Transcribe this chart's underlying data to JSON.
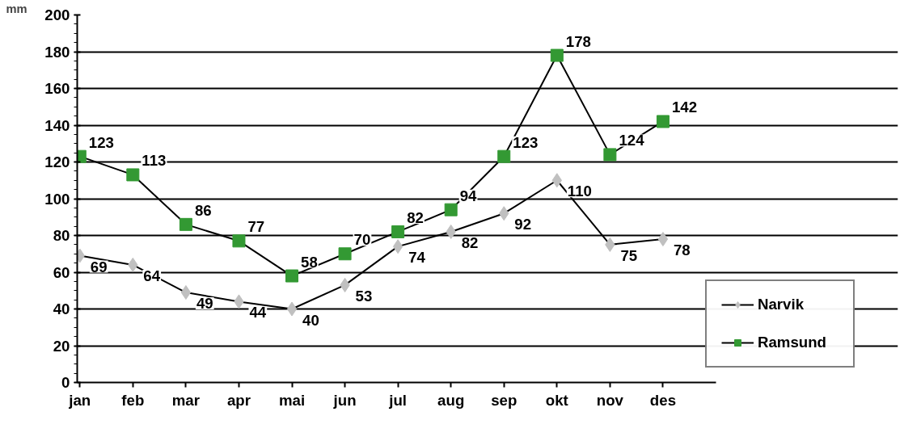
{
  "chart_data": {
    "type": "line",
    "ylabel": "mm",
    "categories": [
      "jan",
      "feb",
      "mar",
      "apr",
      "mai",
      "jun",
      "jul",
      "aug",
      "sep",
      "okt",
      "nov",
      "des"
    ],
    "series": [
      {
        "name": "Narvik",
        "color": "#c0c0c0",
        "marker": "diamond",
        "values": [
          69,
          64,
          49,
          44,
          40,
          53,
          74,
          82,
          92,
          110,
          75,
          78
        ]
      },
      {
        "name": "Ramsund",
        "color": "#339933",
        "marker": "square",
        "values": [
          123,
          113,
          86,
          77,
          58,
          70,
          82,
          94,
          123,
          178,
          124,
          142
        ]
      }
    ],
    "ylim": [
      0,
      200
    ],
    "yticks": [
      0,
      20,
      40,
      60,
      80,
      100,
      120,
      140,
      160,
      180,
      200
    ],
    "grid": "y",
    "legend": "bottom right",
    "data_labels": true,
    "line_style": "solid"
  }
}
